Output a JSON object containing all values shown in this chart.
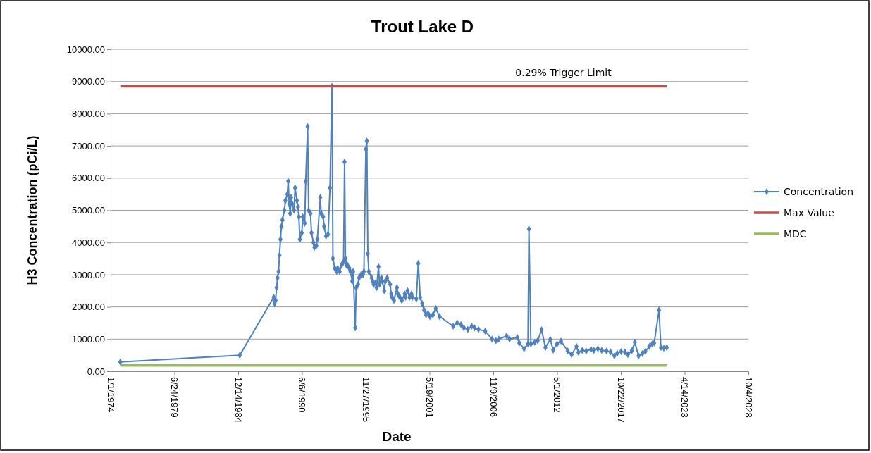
{
  "chart_data": {
    "type": "line",
    "title": "Trout Lake D",
    "xlabel": "Date",
    "ylabel": "H3 Concentration (pCi/L)",
    "xlim": [
      "1974-01-01",
      "2028-10-04"
    ],
    "xticks": [
      {
        "value": "1974-01-01",
        "label": "1/1/1974"
      },
      {
        "value": "1979-06-24",
        "label": "6/24/1979"
      },
      {
        "value": "1984-12-14",
        "label": "12/14/1984"
      },
      {
        "value": "1990-06-06",
        "label": "6/6/1990"
      },
      {
        "value": "1995-11-27",
        "label": "11/27/1995"
      },
      {
        "value": "2001-05-19",
        "label": "5/19/2001"
      },
      {
        "value": "2006-11-09",
        "label": "11/9/2006"
      },
      {
        "value": "2012-05-01",
        "label": "5/1/2012"
      },
      {
        "value": "2017-10-22",
        "label": "10/22/2017"
      },
      {
        "value": "2023-04-14",
        "label": "4/14/2023"
      },
      {
        "value": "2028-10-04",
        "label": "10/4/2028"
      }
    ],
    "ylim": [
      0,
      10000
    ],
    "yticks": [
      {
        "value": 0,
        "label": "0.00"
      },
      {
        "value": 1000,
        "label": "1000.00"
      },
      {
        "value": 2000,
        "label": "2000.00"
      },
      {
        "value": 3000,
        "label": "3000.00"
      },
      {
        "value": 4000,
        "label": "4000.00"
      },
      {
        "value": 5000,
        "label": "5000.00"
      },
      {
        "value": 6000,
        "label": "6000.00"
      },
      {
        "value": 7000,
        "label": "7000.00"
      },
      {
        "value": 8000,
        "label": "8000.00"
      },
      {
        "value": 9000,
        "label": "9000.00"
      },
      {
        "value": 10000,
        "label": "10000.00"
      }
    ],
    "grid": "y",
    "legend": "right",
    "annotations": [
      "0.29% Trigger Limit"
    ],
    "series": [
      {
        "name": "Concentration",
        "color": "#4f81bd",
        "marker": "diamond",
        "x": [
          "1974-11",
          "1985-02",
          "1988-01",
          "1988-02",
          "1988-03",
          "1988-04",
          "1988-05",
          "1988-06",
          "1988-07",
          "1988-08",
          "1988-09",
          "1988-10",
          "1988-12",
          "1989-01",
          "1989-03",
          "1989-04",
          "1989-05",
          "1989-06",
          "1989-07",
          "1989-08",
          "1989-10",
          "1989-11",
          "1990-01",
          "1990-02",
          "1990-03",
          "1990-04",
          "1990-06",
          "1990-07",
          "1990-09",
          "1990-10",
          "1990-12",
          "1991-01",
          "1991-03",
          "1991-04",
          "1991-06",
          "1991-07",
          "1991-09",
          "1991-10",
          "1992-01",
          "1992-02",
          "1992-04",
          "1992-05",
          "1992-07",
          "1992-09",
          "1992-11",
          "1993-01",
          "1993-02",
          "1993-04",
          "1993-06",
          "1993-07",
          "1993-09",
          "1993-11",
          "1994-01",
          "1994-02",
          "1994-03",
          "1994-04",
          "1994-05",
          "1994-07",
          "1994-08",
          "1994-10",
          "1994-11",
          "1995-01",
          "1995-02",
          "1995-04",
          "1995-05",
          "1995-07",
          "1995-09",
          "1995-10",
          "1995-12",
          "1996-01",
          "1996-02",
          "1996-03",
          "1996-06",
          "1996-07",
          "1996-08",
          "1996-10",
          "1996-11",
          "1997-01",
          "1997-02",
          "1997-04",
          "1997-05",
          "1997-07",
          "1997-08",
          "1997-10",
          "1998-01",
          "1998-02",
          "1998-03",
          "1998-05",
          "1998-08",
          "1998-09",
          "1998-11",
          "1999-01",
          "1999-04",
          "1999-05",
          "1999-07",
          "1999-09",
          "1999-11",
          "1999-12",
          "2000-04",
          "2000-06",
          "2000-08",
          "2000-10",
          "2000-12",
          "2001-02",
          "2001-04",
          "2001-06",
          "2001-09",
          "2001-12",
          "2002-04",
          "2003-06",
          "2003-10",
          "2004-02",
          "2004-05",
          "2004-09",
          "2005-01",
          "2005-04",
          "2005-08",
          "2006-03",
          "2006-10",
          "2007-02",
          "2007-05",
          "2008-01",
          "2008-04",
          "2008-12",
          "2009-02",
          "2009-07",
          "2009-11",
          "2009-12",
          "2010-02",
          "2010-06",
          "2010-09",
          "2011-01",
          "2011-05",
          "2011-10",
          "2012-01",
          "2012-05",
          "2012-09",
          "2013-04",
          "2013-08",
          "2014-01",
          "2014-03",
          "2014-07",
          "2014-11",
          "2015-04",
          "2015-07",
          "2015-11",
          "2016-03",
          "2016-08",
          "2016-12",
          "2017-04",
          "2017-07",
          "2017-11",
          "2018-03",
          "2018-06",
          "2018-10",
          "2019-01",
          "2019-05",
          "2019-09",
          "2019-12",
          "2020-04",
          "2020-07",
          "2020-09",
          "2021-02",
          "2021-04",
          "2021-07",
          "2021-10"
        ],
        "values": [
          290,
          500,
          2300,
          2100,
          2200,
          2600,
          2900,
          3100,
          3600,
          4100,
          4500,
          4700,
          5000,
          5300,
          5500,
          5900,
          5200,
          4900,
          5400,
          5200,
          5000,
          5700,
          5300,
          5100,
          4800,
          4100,
          4300,
          4800,
          4600,
          5900,
          7600,
          5000,
          4900,
          4300,
          4000,
          3850,
          3900,
          4100,
          5400,
          4900,
          4800,
          4500,
          4200,
          4250,
          5700,
          8850,
          3500,
          3200,
          3100,
          3200,
          3100,
          3300,
          3400,
          6500,
          3500,
          3300,
          3300,
          3200,
          3100,
          2800,
          3100,
          1350,
          2600,
          2700,
          2900,
          3000,
          3000,
          3100,
          6900,
          7150,
          3650,
          3100,
          2900,
          2800,
          2700,
          2750,
          2600,
          3250,
          2700,
          2900,
          2800,
          2500,
          2800,
          2900,
          2700,
          2400,
          2300,
          2200,
          2600,
          2400,
          2300,
          2200,
          2400,
          2300,
          2500,
          2300,
          2400,
          2300,
          2250,
          3350,
          2300,
          2100,
          1900,
          1750,
          1800,
          1700,
          1750,
          1950,
          1700,
          1400,
          1500,
          1450,
          1350,
          1300,
          1400,
          1350,
          1300,
          1250,
          1000,
          950,
          1000,
          1100,
          1000,
          1050,
          880,
          700,
          850,
          4420,
          850,
          900,
          950,
          1290,
          740,
          990,
          660,
          850,
          940,
          630,
          520,
          770,
          590,
          650,
          630,
          680,
          650,
          700,
          650,
          630,
          600,
          480,
          560,
          610,
          600,
          520,
          640,
          900,
          480,
          550,
          620,
          770,
          850,
          880,
          1900,
          740,
          720,
          740
        ]
      },
      {
        "name": "Max Value",
        "color": "#c0504d",
        "marker": "none",
        "x": [
          "1974-11",
          "2021-10"
        ],
        "values": [
          8850,
          8850
        ]
      },
      {
        "name": "MDC",
        "color": "#9bbb59",
        "marker": "none",
        "x": [
          "1974-11",
          "2021-10"
        ],
        "values": [
          180,
          180
        ]
      }
    ]
  }
}
